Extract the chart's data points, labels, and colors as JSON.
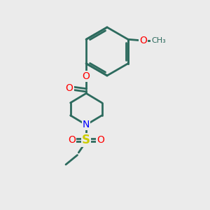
{
  "background_color": "#ebebeb",
  "bond_color": "#2d6b5e",
  "N_color": "#0000ff",
  "O_color": "#ff0000",
  "S_color": "#cccc00",
  "line_width": 2.0,
  "figsize": [
    3.0,
    3.0
  ],
  "dpi": 100,
  "xlim": [
    0,
    10
  ],
  "ylim": [
    0,
    10
  ]
}
